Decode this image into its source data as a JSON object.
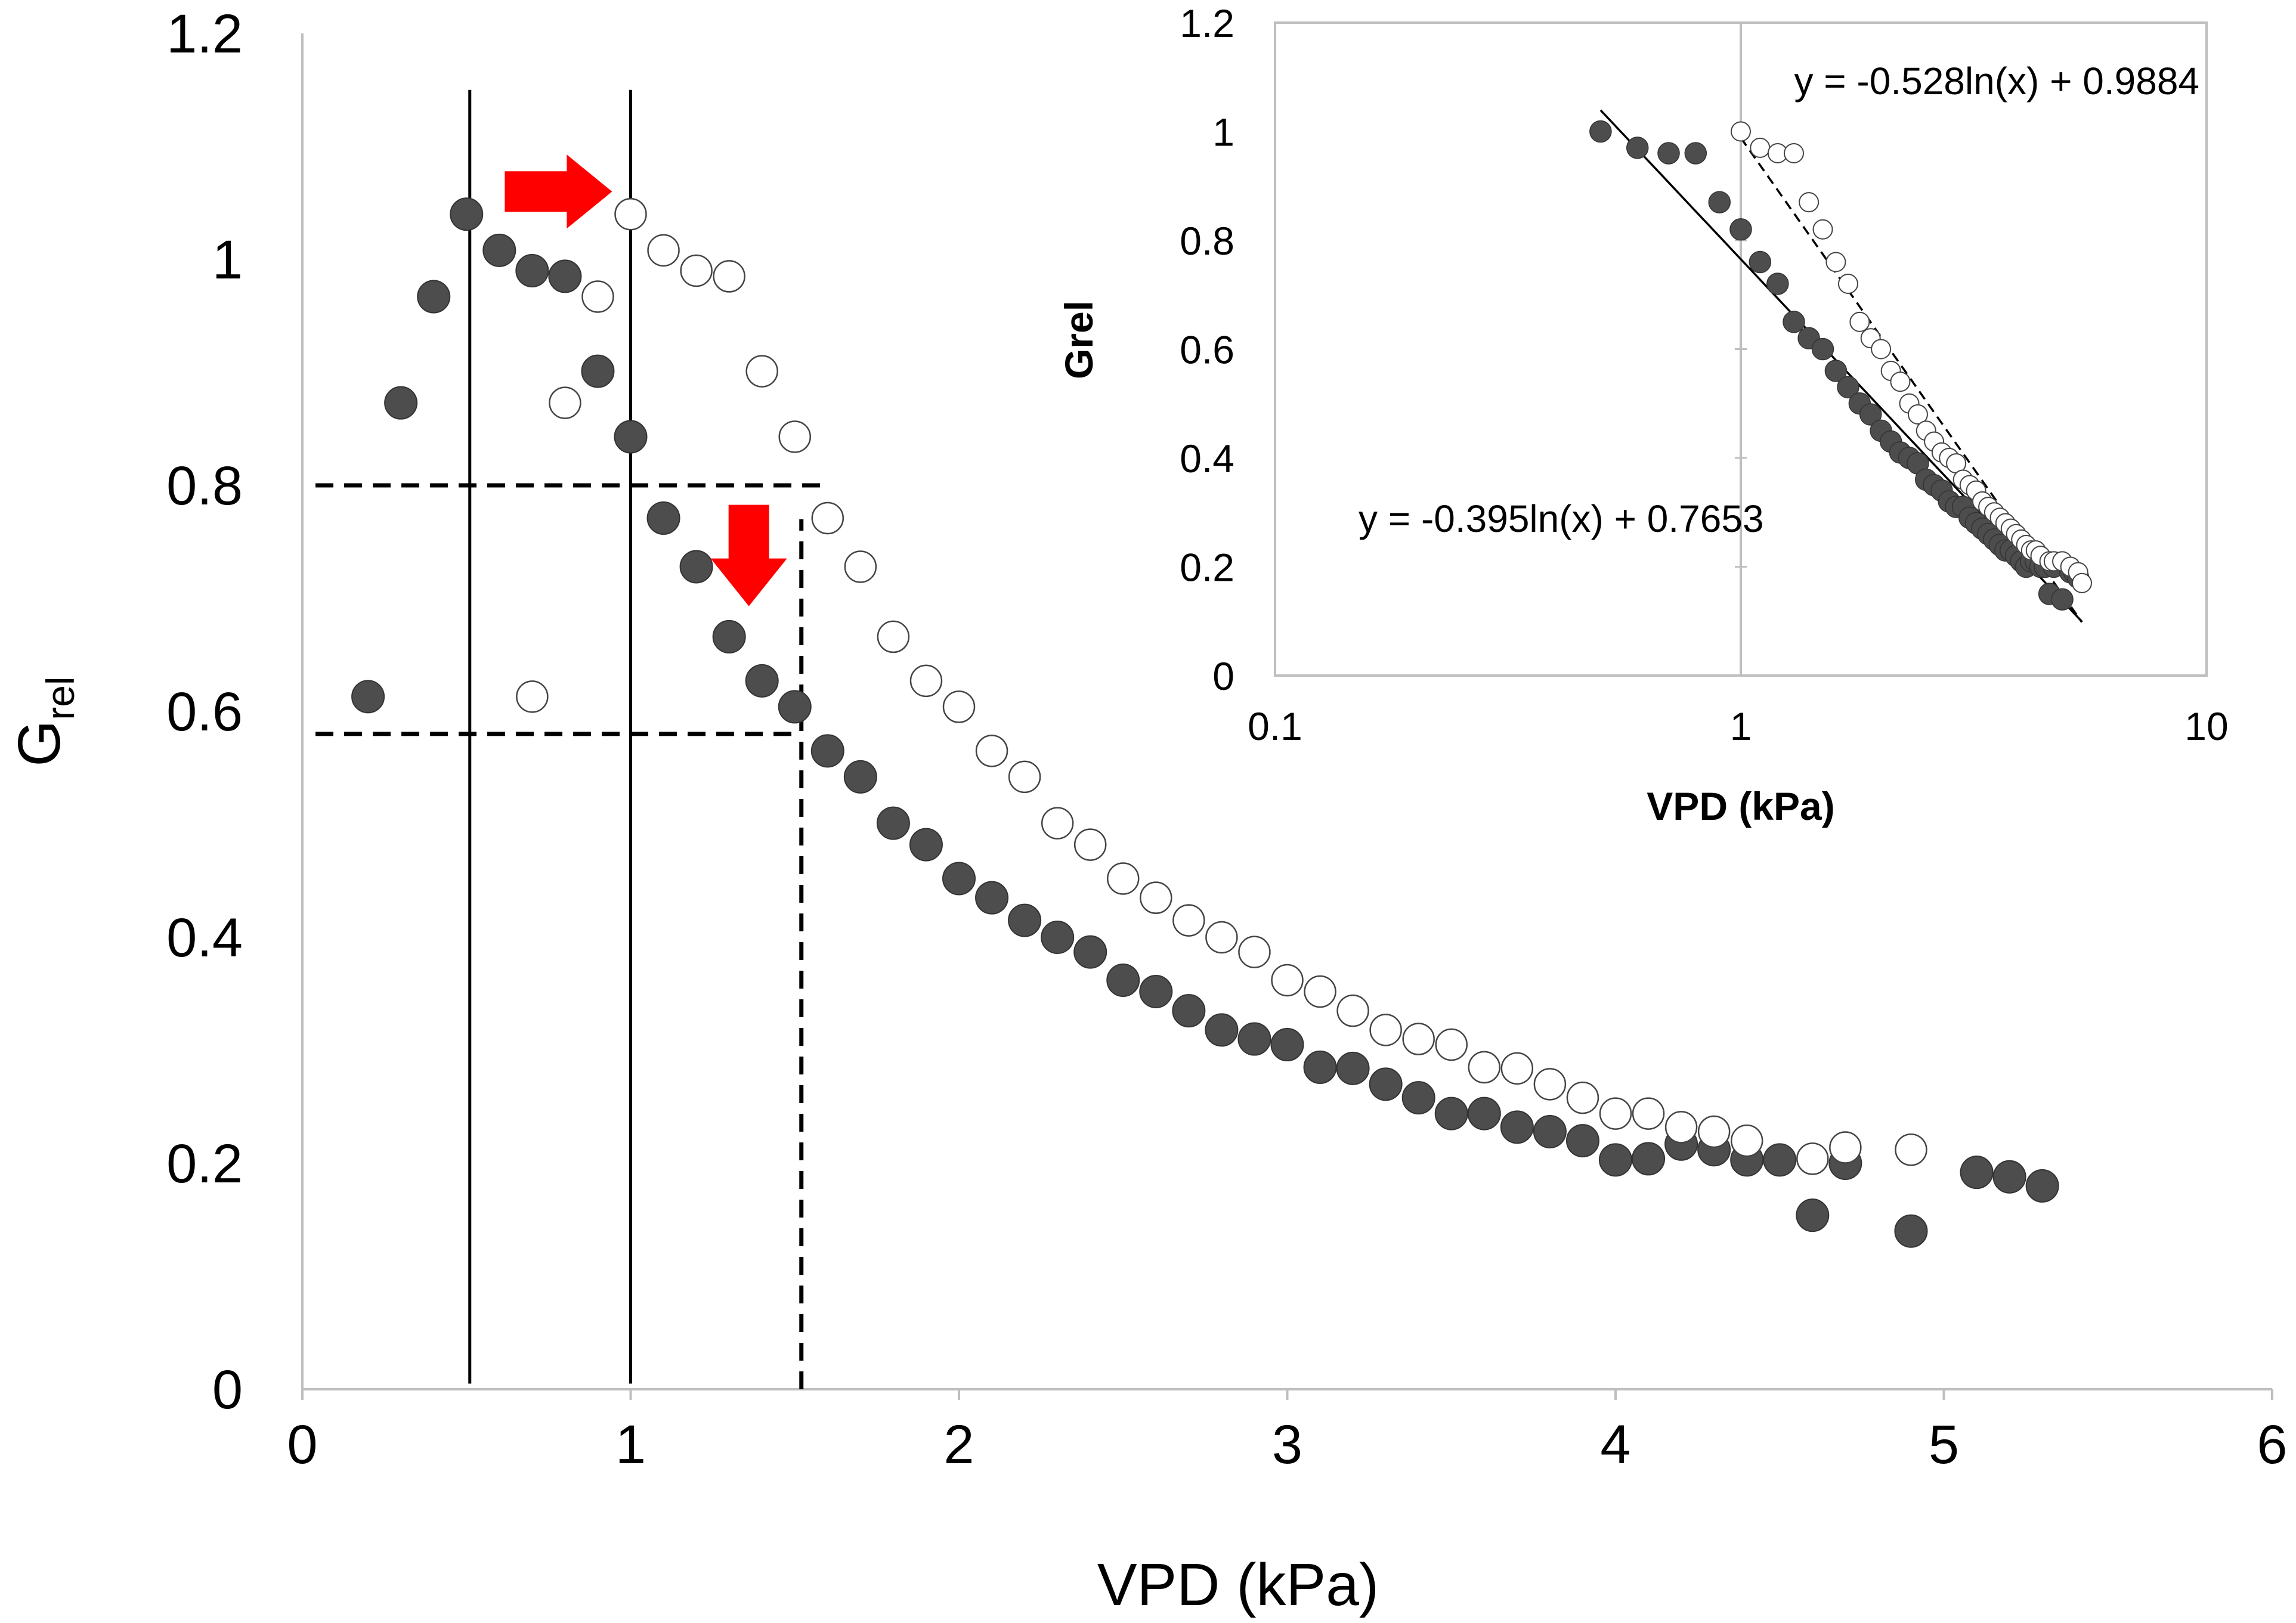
{
  "colors": {
    "filled": "#4d4d4d",
    "hollow": "#ffffff",
    "arrow": "#ff0000",
    "axis": "#bfbfbf",
    "line": "#000000"
  },
  "chart_data": [
    {
      "type": "scatter",
      "name": "main",
      "xlabel": "VPD (kPa)",
      "ylabel_main": "G",
      "ylabel_sub": "rel",
      "xlim": [
        0,
        6
      ],
      "ylim": [
        0,
        1.2
      ],
      "x_ticks": [
        0,
        1,
        2,
        3,
        4,
        5,
        6
      ],
      "x_tick_labels": [
        "0",
        "1",
        "2",
        "3",
        "4",
        "5",
        "6"
      ],
      "y_ticks": [
        0,
        0.2,
        0.4,
        0.6,
        0.8,
        1.0,
        1.2
      ],
      "y_tick_labels": [
        "0",
        "0.2",
        "0.4",
        "0.6",
        "0.8",
        "1",
        "1.2"
      ],
      "series": [
        {
          "name": "filled",
          "style": "filled",
          "points": [
            [
              0.2,
              0.613
            ],
            [
              0.3,
              0.873
            ],
            [
              0.4,
              0.967
            ],
            [
              0.5,
              1.04
            ],
            [
              0.6,
              1.008
            ],
            [
              0.7,
              0.99
            ],
            [
              0.8,
              0.985
            ],
            [
              0.9,
              0.901
            ],
            [
              1.0,
              0.843
            ],
            [
              1.1,
              0.771
            ],
            [
              1.2,
              0.728
            ],
            [
              1.3,
              0.666
            ],
            [
              1.4,
              0.627
            ],
            [
              1.5,
              0.604
            ],
            [
              1.6,
              0.565
            ],
            [
              1.7,
              0.542
            ],
            [
              1.8,
              0.501
            ],
            [
              1.9,
              0.482
            ],
            [
              2.0,
              0.452
            ],
            [
              2.1,
              0.435
            ],
            [
              2.2,
              0.415
            ],
            [
              2.3,
              0.4
            ],
            [
              2.4,
              0.387
            ],
            [
              2.5,
              0.362
            ],
            [
              2.6,
              0.352
            ],
            [
              2.7,
              0.335
            ],
            [
              2.8,
              0.318
            ],
            [
              2.9,
              0.31
            ],
            [
              3.0,
              0.305
            ],
            [
              3.1,
              0.285
            ],
            [
              3.2,
              0.284
            ],
            [
              3.3,
              0.27
            ],
            [
              3.4,
              0.258
            ],
            [
              3.5,
              0.244
            ],
            [
              3.6,
              0.244
            ],
            [
              3.7,
              0.232
            ],
            [
              3.8,
              0.228
            ],
            [
              3.9,
              0.22
            ],
            [
              4.0,
              0.203
            ],
            [
              4.1,
              0.204
            ],
            [
              4.2,
              0.217
            ],
            [
              4.3,
              0.212
            ],
            [
              4.4,
              0.203
            ],
            [
              4.5,
              0.203
            ],
            [
              4.6,
              0.154
            ],
            [
              4.7,
              0.2
            ],
            [
              4.9,
              0.14
            ],
            [
              5.1,
              0.192
            ],
            [
              5.2,
              0.188
            ],
            [
              5.3,
              0.18
            ]
          ]
        },
        {
          "name": "hollow",
          "style": "hollow",
          "points": [
            [
              0.7,
              0.613
            ],
            [
              0.8,
              0.873
            ],
            [
              0.9,
              0.967
            ],
            [
              1.0,
              1.04
            ],
            [
              1.1,
              1.008
            ],
            [
              1.2,
              0.99
            ],
            [
              1.3,
              0.985
            ],
            [
              1.4,
              0.901
            ],
            [
              1.5,
              0.843
            ],
            [
              1.6,
              0.771
            ],
            [
              1.7,
              0.728
            ],
            [
              1.8,
              0.666
            ],
            [
              1.9,
              0.627
            ],
            [
              2.0,
              0.604
            ],
            [
              2.1,
              0.565
            ],
            [
              2.2,
              0.542
            ],
            [
              2.3,
              0.501
            ],
            [
              2.4,
              0.482
            ],
            [
              2.5,
              0.452
            ],
            [
              2.6,
              0.435
            ],
            [
              2.7,
              0.415
            ],
            [
              2.8,
              0.4
            ],
            [
              2.9,
              0.387
            ],
            [
              3.0,
              0.362
            ],
            [
              3.1,
              0.352
            ],
            [
              3.2,
              0.335
            ],
            [
              3.3,
              0.318
            ],
            [
              3.4,
              0.31
            ],
            [
              3.5,
              0.305
            ],
            [
              3.6,
              0.285
            ],
            [
              3.7,
              0.284
            ],
            [
              3.8,
              0.27
            ],
            [
              3.9,
              0.258
            ],
            [
              4.0,
              0.244
            ],
            [
              4.1,
              0.244
            ],
            [
              4.2,
              0.232
            ],
            [
              4.3,
              0.228
            ],
            [
              4.4,
              0.22
            ],
            [
              4.6,
              0.204
            ],
            [
              4.7,
              0.214
            ],
            [
              4.9,
              0.212
            ]
          ]
        }
      ],
      "reference_lines": [
        {
          "kind": "vertical",
          "style": "solid",
          "x": 0.51,
          "y_from": 0.005,
          "y_to": 1.15
        },
        {
          "kind": "vertical",
          "style": "solid",
          "x": 1.0,
          "y_from": 0.005,
          "y_to": 1.15
        },
        {
          "kind": "vertical",
          "style": "dashed",
          "x": 1.52,
          "y_from": 0.0,
          "y_to": 0.77
        },
        {
          "kind": "horizontal",
          "style": "dashed",
          "y": 0.8,
          "x_from": 0.04,
          "x_to": 1.6
        },
        {
          "kind": "horizontal",
          "style": "dashed",
          "y": 0.58,
          "x_from": 0.04,
          "x_to": 1.52
        }
      ],
      "arrows": [
        {
          "direction": "right",
          "x": 0.78,
          "y": 1.06
        },
        {
          "direction": "down",
          "x": 1.36,
          "y": 0.73
        }
      ]
    },
    {
      "type": "scatter",
      "name": "inset",
      "xscale": "log",
      "xlabel": "VPD (kPa)",
      "ylabel": "Grel",
      "xlim": [
        0.1,
        10
      ],
      "ylim": [
        0,
        1.2
      ],
      "x_ticks": [
        0.1,
        1,
        10
      ],
      "x_tick_labels": [
        "0.1",
        "1",
        "10"
      ],
      "y_ticks": [
        0,
        0.2,
        0.4,
        0.6,
        0.8,
        1.0,
        1.2
      ],
      "y_tick_labels": [
        "0",
        "0.2",
        "0.4",
        "0.6",
        "0.8",
        "1",
        "1.2"
      ],
      "equations": [
        {
          "text": "y = -0.528ln(x) + 0.9884",
          "slope": -0.528,
          "intercept": 0.9884,
          "style": "dashed",
          "x_from": 1.0,
          "x_to": 5.4
        },
        {
          "text": "y = -0.395ln(x) + 0.7653",
          "slope": -0.395,
          "intercept": 0.7653,
          "style": "solid",
          "x_from": 0.5,
          "x_to": 5.4
        }
      ],
      "series": [
        {
          "name": "filled",
          "style": "filled",
          "points": [
            [
              0.5,
              1.0
            ],
            [
              0.6,
              0.97
            ],
            [
              0.7,
              0.96
            ],
            [
              0.8,
              0.96
            ],
            [
              0.9,
              0.87
            ],
            [
              1.0,
              0.82
            ],
            [
              1.1,
              0.76
            ],
            [
              1.2,
              0.72
            ],
            [
              1.3,
              0.65
            ],
            [
              1.4,
              0.62
            ],
            [
              1.5,
              0.6
            ],
            [
              1.6,
              0.56
            ],
            [
              1.7,
              0.53
            ],
            [
              1.8,
              0.5
            ],
            [
              1.9,
              0.48
            ],
            [
              2.0,
              0.45
            ],
            [
              2.1,
              0.43
            ],
            [
              2.2,
              0.41
            ],
            [
              2.3,
              0.4
            ],
            [
              2.4,
              0.39
            ],
            [
              2.5,
              0.36
            ],
            [
              2.6,
              0.35
            ],
            [
              2.7,
              0.34
            ],
            [
              2.8,
              0.32
            ],
            [
              2.9,
              0.31
            ],
            [
              3.0,
              0.31
            ],
            [
              3.1,
              0.29
            ],
            [
              3.2,
              0.28
            ],
            [
              3.3,
              0.27
            ],
            [
              3.4,
              0.26
            ],
            [
              3.5,
              0.25
            ],
            [
              3.6,
              0.24
            ],
            [
              3.7,
              0.23
            ],
            [
              3.8,
              0.23
            ],
            [
              3.9,
              0.22
            ],
            [
              4.0,
              0.21
            ],
            [
              4.1,
              0.2
            ],
            [
              4.2,
              0.21
            ],
            [
              4.3,
              0.21
            ],
            [
              4.4,
              0.2
            ],
            [
              4.5,
              0.2
            ],
            [
              4.6,
              0.15
            ],
            [
              4.7,
              0.2
            ],
            [
              4.9,
              0.14
            ],
            [
              5.1,
              0.19
            ],
            [
              5.2,
              0.19
            ],
            [
              5.3,
              0.18
            ]
          ]
        },
        {
          "name": "hollow",
          "style": "hollow",
          "points": [
            [
              1.0,
              1.0
            ],
            [
              1.1,
              0.97
            ],
            [
              1.2,
              0.96
            ],
            [
              1.3,
              0.96
            ],
            [
              1.4,
              0.87
            ],
            [
              1.5,
              0.82
            ],
            [
              1.6,
              0.76
            ],
            [
              1.7,
              0.72
            ],
            [
              1.8,
              0.65
            ],
            [
              1.9,
              0.62
            ],
            [
              2.0,
              0.6
            ],
            [
              2.1,
              0.56
            ],
            [
              2.2,
              0.54
            ],
            [
              2.3,
              0.5
            ],
            [
              2.4,
              0.48
            ],
            [
              2.5,
              0.45
            ],
            [
              2.6,
              0.43
            ],
            [
              2.7,
              0.41
            ],
            [
              2.8,
              0.4
            ],
            [
              2.9,
              0.39
            ],
            [
              3.0,
              0.36
            ],
            [
              3.1,
              0.35
            ],
            [
              3.2,
              0.34
            ],
            [
              3.3,
              0.32
            ],
            [
              3.4,
              0.31
            ],
            [
              3.5,
              0.3
            ],
            [
              3.6,
              0.29
            ],
            [
              3.7,
              0.28
            ],
            [
              3.8,
              0.27
            ],
            [
              3.9,
              0.26
            ],
            [
              4.0,
              0.25
            ],
            [
              4.1,
              0.24
            ],
            [
              4.2,
              0.23
            ],
            [
              4.3,
              0.23
            ],
            [
              4.4,
              0.22
            ],
            [
              4.6,
              0.21
            ],
            [
              4.7,
              0.21
            ],
            [
              4.9,
              0.21
            ],
            [
              5.1,
              0.2
            ],
            [
              5.3,
              0.19
            ],
            [
              5.4,
              0.17
            ]
          ]
        }
      ]
    }
  ]
}
